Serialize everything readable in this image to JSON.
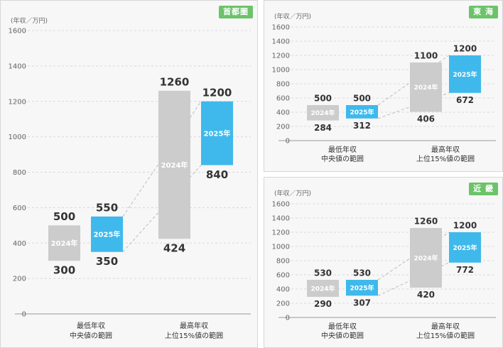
{
  "colors": {
    "y2024": "#cccccc",
    "y2025": "#3fb9eb",
    "badge": "#6cc36a"
  },
  "chart_data": [
    {
      "type": "range-bar",
      "region": "首都圏",
      "unit": "(年収／万円)",
      "ylim": [
        0,
        1600
      ],
      "ticks": [
        0,
        200,
        400,
        600,
        800,
        1000,
        1200,
        1400,
        1600
      ],
      "categories": [
        {
          "line1": "最低年収",
          "line2": "中央値の範囲"
        },
        {
          "line1": "最高年収",
          "line2": "上位15%値の範囲"
        }
      ],
      "series": [
        {
          "name": "2024年",
          "ranges": [
            [
              300,
              500
            ],
            [
              424,
              1260
            ]
          ]
        },
        {
          "name": "2025年",
          "ranges": [
            [
              350,
              550
            ],
            [
              840,
              1200
            ]
          ]
        }
      ]
    },
    {
      "type": "range-bar",
      "region": "東 海",
      "unit": "(年収／万円)",
      "ylim": [
        0,
        1600
      ],
      "ticks": [
        0,
        200,
        400,
        600,
        800,
        1000,
        1200,
        1400,
        1600
      ],
      "categories": [
        {
          "line1": "最低年収",
          "line2": "中央値の範囲"
        },
        {
          "line1": "最高年収",
          "line2": "上位15%値の範囲"
        }
      ],
      "series": [
        {
          "name": "2024年",
          "ranges": [
            [
              284,
              500
            ],
            [
              406,
              1100
            ]
          ]
        },
        {
          "name": "2025年",
          "ranges": [
            [
              312,
              500
            ],
            [
              672,
              1200
            ]
          ]
        }
      ]
    },
    {
      "type": "range-bar",
      "region": "近 畿",
      "unit": "(年収／万円)",
      "ylim": [
        0,
        1600
      ],
      "ticks": [
        0,
        200,
        400,
        600,
        800,
        1000,
        1200,
        1400,
        1600
      ],
      "categories": [
        {
          "line1": "最低年収",
          "line2": "中央値の範囲"
        },
        {
          "line1": "最高年収",
          "line2": "上位15%値の範囲"
        }
      ],
      "series": [
        {
          "name": "2024年",
          "ranges": [
            [
              290,
              530
            ],
            [
              420,
              1260
            ]
          ]
        },
        {
          "name": "2025年",
          "ranges": [
            [
              307,
              530
            ],
            [
              772,
              1200
            ]
          ]
        }
      ]
    }
  ]
}
